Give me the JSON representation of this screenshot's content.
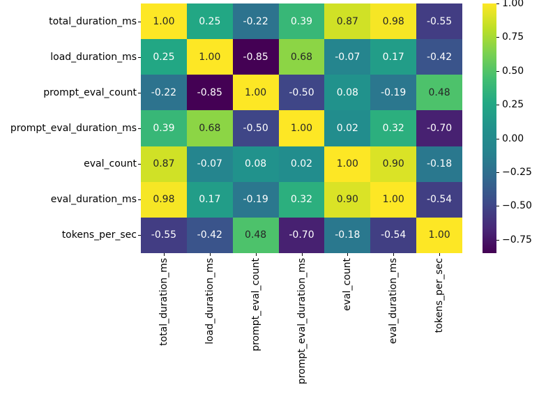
{
  "chart_data": {
    "type": "heatmap",
    "title": "",
    "xlabel": "",
    "ylabel": "",
    "variables": [
      "total_duration_ms",
      "load_duration_ms",
      "prompt_eval_count",
      "prompt_eval_duration_ms",
      "eval_count",
      "eval_duration_ms",
      "tokens_per_sec"
    ],
    "matrix": [
      [
        1.0,
        0.25,
        -0.22,
        0.39,
        0.87,
        0.98,
        -0.55
      ],
      [
        0.25,
        1.0,
        -0.85,
        0.68,
        -0.07,
        0.17,
        -0.42
      ],
      [
        -0.22,
        -0.85,
        1.0,
        -0.5,
        0.08,
        -0.19,
        0.48
      ],
      [
        0.39,
        0.68,
        -0.5,
        1.0,
        0.02,
        0.32,
        -0.7
      ],
      [
        0.87,
        -0.07,
        0.08,
        0.02,
        1.0,
        0.9,
        -0.18
      ],
      [
        0.98,
        0.17,
        -0.19,
        0.32,
        0.9,
        1.0,
        -0.54
      ],
      [
        -0.55,
        -0.42,
        0.48,
        -0.7,
        -0.18,
        -0.54,
        1.0
      ]
    ],
    "annotation_format": "two decimals",
    "colormap": "viridis",
    "vmin": -0.85,
    "vmax": 1.0,
    "grid": false,
    "legend_position": "right colorbar",
    "colorbar": {
      "tick_values": [
        1.0,
        0.75,
        0.5,
        0.25,
        0.0,
        -0.25,
        -0.5,
        -0.75
      ],
      "tick_labels": [
        "1.00",
        "0.75",
        "0.50",
        "0.25",
        "0.00",
        "−0.25",
        "−0.50",
        "−0.75"
      ]
    }
  },
  "colors": {
    "background": "#ffffff",
    "annotation_dark": "#262626",
    "annotation_light": "#ffffff",
    "axis_text": "#000000",
    "viridis_stops": [
      "#440154",
      "#482878",
      "#3e4a89",
      "#31688e",
      "#26828e",
      "#21918c",
      "#22a884",
      "#42be71",
      "#7ad151",
      "#bddf26",
      "#fde725"
    ]
  }
}
